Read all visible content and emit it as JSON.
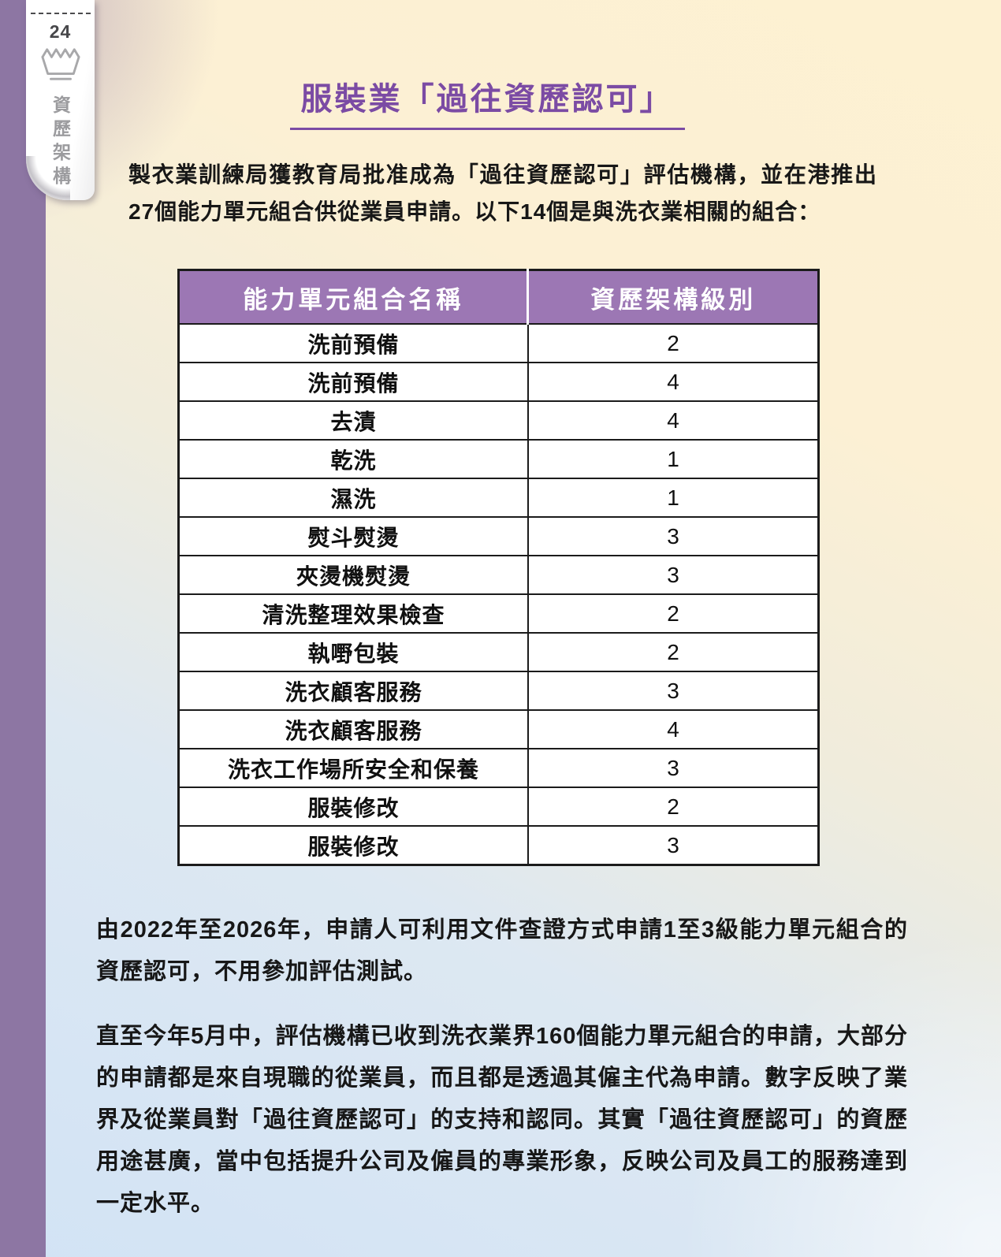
{
  "sidebar": {
    "page_number": "24",
    "tab_label": "資歷架構",
    "icon": "wash-tub-icon"
  },
  "title": "服裝業「過往資歷認可」",
  "intro": "製衣業訓練局獲教育局批准成為「過往資歷認可」評估機構，並在港推出27個能力單元組合供從業員申請。以下14個是與洗衣業相關的組合：",
  "table": {
    "headers": [
      "能力單元組合名稱",
      "資歷架構級別"
    ],
    "rows": [
      {
        "name": "洗前預備",
        "level": "2"
      },
      {
        "name": "洗前預備",
        "level": "4"
      },
      {
        "name": "去漬",
        "level": "4"
      },
      {
        "name": "乾洗",
        "level": "1"
      },
      {
        "name": "濕洗",
        "level": "1"
      },
      {
        "name": "熨斗熨燙",
        "level": "3"
      },
      {
        "name": "夾燙機熨燙",
        "level": "3"
      },
      {
        "name": "清洗整理效果檢查",
        "level": "2"
      },
      {
        "name": "執嘢包裝",
        "level": "2"
      },
      {
        "name": "洗衣顧客服務",
        "level": "3"
      },
      {
        "name": "洗衣顧客服務",
        "level": "4"
      },
      {
        "name": "洗衣工作場所安全和保養",
        "level": "3"
      },
      {
        "name": "服裝修改",
        "level": "2"
      },
      {
        "name": "服裝修改",
        "level": "3"
      }
    ]
  },
  "paragraphs": [
    "由2022年至2026年，申請人可利用文件查證方式申請1至3級能力單元組合的資歷認可，不用參加評估測試。",
    "直至今年5月中，評估機構已收到洗衣業界160個能力單元組合的申請，大部分的申請都是來自現職的從業員，而且都是透過其僱主代為申請。數字反映了業界及從業員對「過往資歷認可」的支持和認同。其實「過往資歷認可」的資歷用途甚廣，當中包括提升公司及僱員的專業形象，反映公司及員工的服務達到一定水平。"
  ],
  "colors": {
    "accent_purple": "#7b4ba4",
    "table_header_purple": "#9c77b4",
    "margin_strip_purple": "#8d76a3",
    "background_cream": "#fdf1d2",
    "background_blue": "#d2e3f5"
  }
}
